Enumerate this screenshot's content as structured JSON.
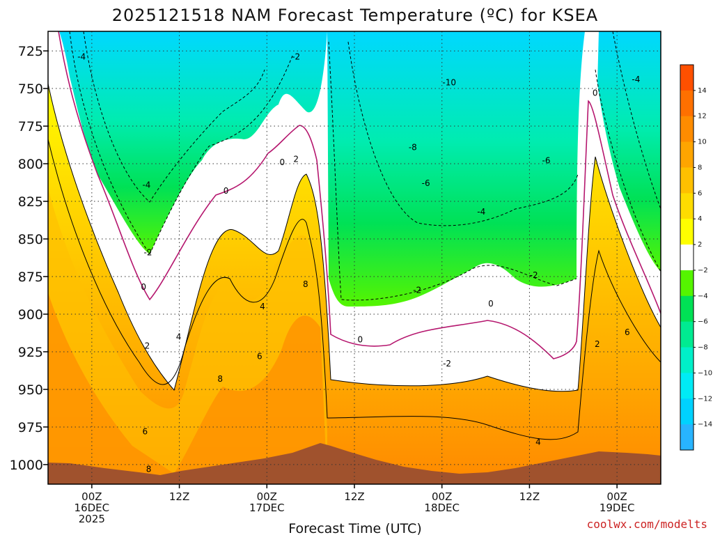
{
  "chart_data": {
    "type": "contour",
    "title": "2025121518 NAM Forecast Temperature (ºC) for KSEA",
    "xlabel": "Forecast Time (UTC)",
    "ylabel": "",
    "y_axis": {
      "unit": "hPa",
      "inverted": true,
      "range": [
        1013,
        712
      ],
      "ticks": [
        725,
        750,
        775,
        800,
        825,
        850,
        875,
        900,
        925,
        950,
        975,
        1000
      ]
    },
    "x_axis": {
      "unit": "forecast hour",
      "range": [
        -6,
        78
      ],
      "ticks": [
        {
          "hour": 0,
          "lines": [
            "00Z",
            "16DEC",
            "2025"
          ]
        },
        {
          "hour": 12,
          "lines": [
            "12Z"
          ]
        },
        {
          "hour": 24,
          "lines": [
            "00Z",
            "17DEC"
          ]
        },
        {
          "hour": 36,
          "lines": [
            "12Z"
          ]
        },
        {
          "hour": 48,
          "lines": [
            "00Z",
            "18DEC"
          ]
        },
        {
          "hour": 60,
          "lines": [
            "12Z"
          ]
        },
        {
          "hour": 72,
          "lines": [
            "00Z",
            "19DEC"
          ]
        }
      ]
    },
    "grid": true,
    "contour_interval": 2,
    "colorbar": {
      "labels": [
        "14",
        "12",
        "10",
        "8",
        "6",
        "4",
        "2",
        "−2",
        "−4",
        "−6",
        "−8",
        "−10",
        "−12",
        "−14"
      ],
      "colors": [
        "#ff5000",
        "#ff7000",
        "#ff8c00",
        "#ffa500",
        "#ffc000",
        "#ffdc00",
        "#ffff00",
        "#ffffff",
        "#55f500",
        "#00e155",
        "#00eb91",
        "#00f0c8",
        "#00ebf5",
        "#00d2ff",
        "#28b4ff"
      ]
    },
    "colors": {
      "ground": "#a0522d",
      "freezing_line": "#b5166e",
      "contour": "#000000"
    },
    "contour_labels": [
      {
        "value": "-4",
        "hour": -1.4,
        "hPa": 729
      },
      {
        "value": "-2",
        "hour": 28,
        "hPa": 729
      },
      {
        "value": "-10",
        "hour": 49,
        "hPa": 746
      },
      {
        "value": "-4",
        "hour": 74.6,
        "hPa": 744
      },
      {
        "value": "0",
        "hour": 69,
        "hPa": 753
      },
      {
        "value": "-8",
        "hour": 44,
        "hPa": 789
      },
      {
        "value": "-6",
        "hour": 62.3,
        "hPa": 798
      },
      {
        "value": "0",
        "hour": 26.1,
        "hPa": 799
      },
      {
        "value": "2",
        "hour": 28,
        "hPa": 797
      },
      {
        "value": "-6",
        "hour": 45.8,
        "hPa": 813
      },
      {
        "value": "0",
        "hour": 18.4,
        "hPa": 818
      },
      {
        "value": "-4",
        "hour": 7.5,
        "hPa": 814
      },
      {
        "value": "-4",
        "hour": 53.4,
        "hPa": 832
      },
      {
        "value": "-2",
        "hour": 7.7,
        "hPa": 859
      },
      {
        "value": "-2",
        "hour": 60.6,
        "hPa": 874
      },
      {
        "value": "0",
        "hour": 7.1,
        "hPa": 882
      },
      {
        "value": "-2",
        "hour": 44.6,
        "hPa": 884
      },
      {
        "value": "0",
        "hour": 54.7,
        "hPa": 893
      },
      {
        "value": "4",
        "hour": 23.4,
        "hPa": 895
      },
      {
        "value": "8",
        "hour": 29.3,
        "hPa": 880
      },
      {
        "value": "4",
        "hour": 11.9,
        "hPa": 915
      },
      {
        "value": "2",
        "hour": 7.6,
        "hPa": 921
      },
      {
        "value": "0",
        "hour": 36.8,
        "hPa": 917
      },
      {
        "value": "2",
        "hour": 69.3,
        "hPa": 920
      },
      {
        "value": "6",
        "hour": 73.4,
        "hPa": 912
      },
      {
        "value": "6",
        "hour": 23,
        "hPa": 928
      },
      {
        "value": "-2",
        "hour": 48.7,
        "hPa": 933
      },
      {
        "value": "8",
        "hour": 17.6,
        "hPa": 943
      },
      {
        "value": "6",
        "hour": 7.3,
        "hPa": 978
      },
      {
        "value": "4",
        "hour": 61.2,
        "hPa": 985
      },
      {
        "value": "8",
        "hour": 7.8,
        "hPa": 1003
      }
    ]
  },
  "watermark": "coolwx.com/modelts"
}
